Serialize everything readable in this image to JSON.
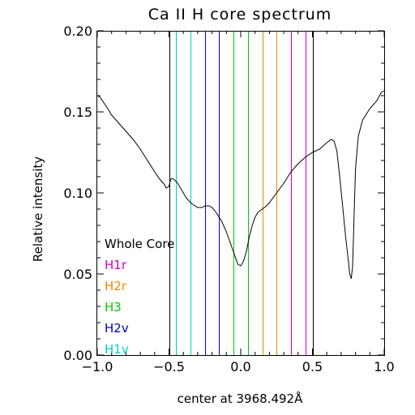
{
  "chart_data": {
    "type": "line",
    "title": "Ca II H core spectrum",
    "xlabel": "center at 3968.492Å",
    "ylabel": "Relative intensity",
    "xlim": [
      -1.0,
      1.0
    ],
    "ylim": [
      0.0,
      0.2
    ],
    "xticks": [
      "−1.0",
      "−0.5",
      "0.0",
      "0.5",
      "1.0"
    ],
    "yticks": [
      "0.00",
      "0.05",
      "0.10",
      "0.15",
      "0.20"
    ],
    "grid": false,
    "legend_position": "lower-left",
    "series": [
      {
        "color": "#000000",
        "x": [
          -1.0,
          -0.98,
          -0.95,
          -0.92,
          -0.9,
          -0.85,
          -0.8,
          -0.75,
          -0.7,
          -0.65,
          -0.6,
          -0.57,
          -0.55,
          -0.53,
          -0.52,
          -0.5,
          -0.49,
          -0.48,
          -0.46,
          -0.44,
          -0.42,
          -0.4,
          -0.38,
          -0.35,
          -0.32,
          -0.3,
          -0.27,
          -0.25,
          -0.22,
          -0.2,
          -0.18,
          -0.15,
          -0.13,
          -0.1,
          -0.08,
          -0.06,
          -0.04,
          -0.02,
          0.0,
          0.02,
          0.04,
          0.06,
          0.08,
          0.1,
          0.12,
          0.15,
          0.18,
          0.2,
          0.25,
          0.3,
          0.35,
          0.4,
          0.45,
          0.5,
          0.55,
          0.6,
          0.63,
          0.65,
          0.67,
          0.69,
          0.71,
          0.73,
          0.75,
          0.76,
          0.77,
          0.78,
          0.79,
          0.8,
          0.82,
          0.85,
          0.9,
          0.95,
          0.98,
          1.0
        ],
        "y": [
          0.16,
          0.159,
          0.155,
          0.151,
          0.148,
          0.143,
          0.138,
          0.133,
          0.127,
          0.12,
          0.113,
          0.109,
          0.107,
          0.105,
          0.103,
          0.104,
          0.108,
          0.109,
          0.108,
          0.106,
          0.103,
          0.1,
          0.097,
          0.094,
          0.092,
          0.091,
          0.091,
          0.092,
          0.092,
          0.091,
          0.089,
          0.085,
          0.082,
          0.076,
          0.071,
          0.066,
          0.061,
          0.056,
          0.055,
          0.058,
          0.064,
          0.073,
          0.08,
          0.085,
          0.088,
          0.09,
          0.092,
          0.094,
          0.1,
          0.106,
          0.113,
          0.118,
          0.122,
          0.125,
          0.127,
          0.131,
          0.133,
          0.132,
          0.126,
          0.11,
          0.092,
          0.074,
          0.058,
          0.05,
          0.047,
          0.055,
          0.085,
          0.115,
          0.135,
          0.145,
          0.152,
          0.157,
          0.162,
          0.163
        ]
      }
    ],
    "band_lines": [
      {
        "x": -0.5,
        "color": "#000000"
      },
      {
        "x": 0.5,
        "color": "#000000"
      },
      {
        "x": -0.45,
        "color": "#00cccc"
      },
      {
        "x": -0.35,
        "color": "#00cccc"
      },
      {
        "x": -0.25,
        "color": "#0000cc"
      },
      {
        "x": -0.15,
        "color": "#0000cc"
      },
      {
        "x": -0.05,
        "color": "#00cc00"
      },
      {
        "x": 0.05,
        "color": "#00cc00"
      },
      {
        "x": 0.15,
        "color": "#ee8800"
      },
      {
        "x": 0.25,
        "color": "#ee8800"
      },
      {
        "x": 0.35,
        "color": "#cc00cc"
      },
      {
        "x": 0.45,
        "color": "#cc00cc"
      }
    ],
    "legend": [
      {
        "label": "Whole Core",
        "color": "#000000"
      },
      {
        "label": "H1r",
        "color": "#cc00cc"
      },
      {
        "label": "H2r",
        "color": "#ee8800"
      },
      {
        "label": "H3",
        "color": "#00cc00"
      },
      {
        "label": "H2v",
        "color": "#0000cc"
      },
      {
        "label": "H1v",
        "color": "#00cccc"
      }
    ]
  }
}
